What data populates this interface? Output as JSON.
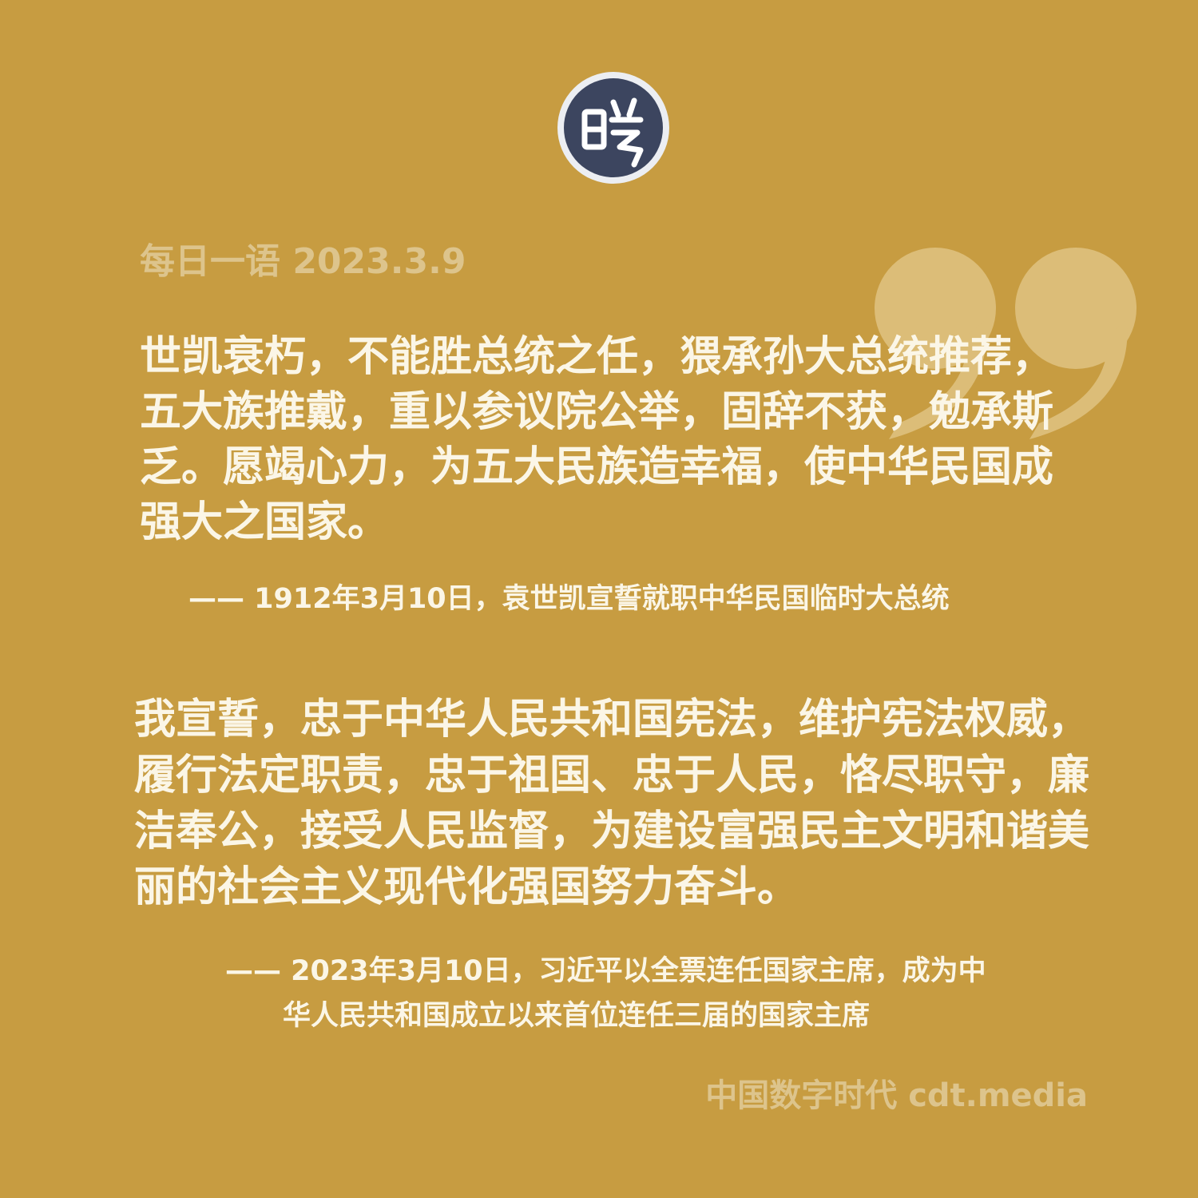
{
  "logo": {
    "icon": "cdt-seal-logo-icon",
    "glyph": "㖞",
    "colors": {
      "fill": "#3c455f",
      "ring": "#eceef2",
      "glyph": "#ffffff"
    }
  },
  "header": {
    "date_label": "每日一语 2023.3.9"
  },
  "decoration": {
    "icon": "closing-quote-mark-icon",
    "color": "#dcbd78"
  },
  "quotes": [
    {
      "text": "世凯衰朽，不能胜总统之任，猥承孙大总统推荐，五大族推戴，重以参议院公举，固辞不获，勉承斯乏。愿竭心力，为五大民族造幸福，使中华民国成强大之国家。",
      "attribution": "—— 1912年3月10日，袁世凯宣誓就职中华民国临时大总统"
    },
    {
      "text": "我宣誓，忠于中华人民共和国宪法，维护宪法权威，履行法定职责，忠于祖国、忠于人民，恪尽职守，廉洁奉公，接受人民监督，为建设富强民主文明和谐美丽的社会主义现代化强国努力奋斗。",
      "attribution_line1": "—— 2023年3月10日，习近平以全票连任国家主席，成为中",
      "attribution_line2": "华人民共和国成立以来首位连任三届的国家主席"
    }
  ],
  "footer": {
    "brand": "中国数字时代 cdt.media"
  },
  "colors": {
    "background": "#c79c41",
    "text_primary": "#fbf6e7",
    "text_muted": "#ddc48c"
  }
}
